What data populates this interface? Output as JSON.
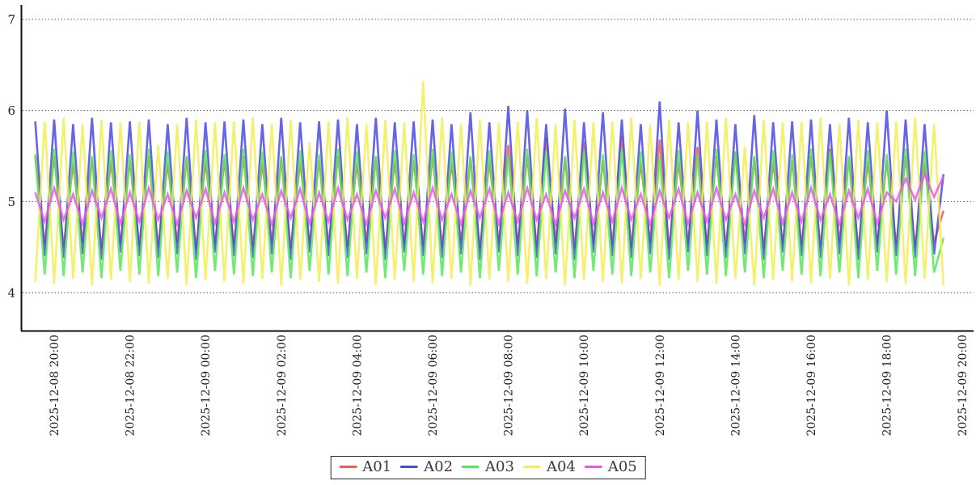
{
  "chart_data": {
    "type": "line",
    "title": "",
    "xlabel": "",
    "ylabel": "",
    "grid": "horizontal-dotted",
    "legend_position": "bottom-center",
    "x_start": "2025-12-08 19:30",
    "x_step_minutes": 15,
    "x_axis_ticks": [
      "2025-12-08 20:00",
      "2025-12-08 22:00",
      "2025-12-09 00:00",
      "2025-12-09 02:00",
      "2025-12-09 04:00",
      "2025-12-09 06:00",
      "2025-12-09 08:00",
      "2025-12-09 10:00",
      "2025-12-09 12:00",
      "2025-12-09 14:00",
      "2025-12-09 16:00",
      "2025-12-09 18:00",
      "2025-12-09 20:00"
    ],
    "y_axis": {
      "ticks": [
        4,
        5,
        6,
        7
      ],
      "range": [
        3.57,
        7.15
      ]
    },
    "series": [
      {
        "name": "A01",
        "color": "#f25b55",
        "values": [
          5.5,
          4.52,
          5.5,
          4.5,
          5.42,
          4.55,
          5.48,
          4.48,
          5.44,
          4.53,
          5.45,
          4.52,
          5.5,
          4.5,
          5.42,
          4.55,
          5.48,
          4.48,
          5.44,
          4.53,
          5.45,
          4.52,
          5.5,
          4.5,
          5.42,
          4.55,
          5.48,
          4.48,
          5.44,
          4.53,
          5.45,
          4.52,
          5.5,
          4.5,
          5.42,
          4.55,
          5.48,
          4.48,
          5.44,
          4.53,
          5.45,
          4.52,
          5.5,
          4.5,
          5.42,
          4.55,
          5.48,
          4.48,
          5.44,
          4.53,
          5.62,
          4.52,
          5.5,
          4.5,
          5.7,
          4.55,
          5.48,
          4.48,
          5.66,
          4.53,
          5.45,
          4.52,
          5.72,
          4.5,
          5.42,
          4.55,
          5.68,
          4.48,
          5.44,
          4.53,
          5.6,
          4.52,
          5.5,
          4.5,
          5.55,
          4.55,
          5.48,
          4.48,
          5.44,
          4.53,
          5.45,
          4.52,
          5.5,
          4.5,
          5.58,
          4.55,
          5.48,
          4.48,
          5.44,
          4.53,
          5.45,
          4.52,
          5.5,
          4.5,
          5.42,
          4.55,
          4.9
        ]
      },
      {
        "name": "A02",
        "color": "#4a4ae0",
        "values": [
          5.88,
          4.4,
          5.9,
          4.38,
          5.85,
          4.42,
          5.92,
          4.36,
          5.87,
          4.44,
          5.88,
          4.4,
          5.9,
          4.38,
          5.85,
          4.42,
          5.92,
          4.36,
          5.87,
          4.44,
          5.88,
          4.4,
          5.9,
          4.38,
          5.85,
          4.42,
          5.92,
          4.36,
          5.87,
          4.44,
          5.88,
          4.4,
          5.9,
          4.38,
          5.85,
          4.42,
          5.92,
          4.36,
          5.87,
          4.44,
          5.88,
          4.4,
          5.9,
          4.38,
          5.85,
          4.42,
          5.98,
          4.36,
          5.87,
          4.44,
          6.05,
          4.4,
          6.0,
          4.38,
          5.85,
          4.42,
          6.02,
          4.36,
          5.87,
          4.44,
          5.98,
          4.4,
          5.9,
          4.38,
          5.85,
          4.42,
          6.1,
          4.36,
          5.87,
          4.44,
          6.0,
          4.4,
          5.9,
          4.38,
          5.85,
          4.42,
          5.95,
          4.36,
          5.87,
          4.44,
          5.88,
          4.4,
          5.9,
          4.38,
          5.85,
          4.42,
          5.92,
          4.36,
          5.87,
          4.44,
          6.0,
          4.4,
          5.9,
          4.38,
          5.85,
          4.42,
          5.3
        ]
      },
      {
        "name": "A03",
        "color": "#57e657",
        "values": [
          5.52,
          4.2,
          5.58,
          4.18,
          5.55,
          4.22,
          5.5,
          4.16,
          5.56,
          4.24,
          5.52,
          4.2,
          5.58,
          4.18,
          5.55,
          4.22,
          5.5,
          4.16,
          5.56,
          4.24,
          5.52,
          4.2,
          5.58,
          4.18,
          5.55,
          4.22,
          5.5,
          4.16,
          5.56,
          4.24,
          5.52,
          4.2,
          5.58,
          4.18,
          5.55,
          4.22,
          5.5,
          4.16,
          5.56,
          4.24,
          5.52,
          4.2,
          5.58,
          4.18,
          5.55,
          4.22,
          5.5,
          4.16,
          5.56,
          4.24,
          5.52,
          4.2,
          5.58,
          4.18,
          5.55,
          4.22,
          5.5,
          4.16,
          5.56,
          4.24,
          5.52,
          4.2,
          5.58,
          4.18,
          5.55,
          4.22,
          5.5,
          4.16,
          5.56,
          4.24,
          5.52,
          4.2,
          5.58,
          4.18,
          5.55,
          4.22,
          5.5,
          4.16,
          5.56,
          4.24,
          5.52,
          4.2,
          5.58,
          4.18,
          5.55,
          4.22,
          5.5,
          4.16,
          5.56,
          4.24,
          5.52,
          4.2,
          5.58,
          4.18,
          5.55,
          4.22,
          4.6
        ]
      },
      {
        "name": "A04",
        "color": "#f2ee58",
        "values": [
          4.12,
          5.88,
          4.1,
          5.92,
          4.15,
          5.85,
          4.08,
          5.9,
          4.14,
          5.87,
          4.12,
          5.88,
          4.1,
          5.62,
          4.15,
          5.85,
          4.08,
          5.9,
          4.14,
          5.87,
          4.12,
          5.88,
          4.1,
          5.92,
          4.15,
          5.85,
          4.08,
          5.9,
          4.14,
          5.65,
          4.12,
          5.88,
          4.1,
          5.92,
          4.15,
          5.85,
          4.08,
          5.9,
          4.14,
          5.87,
          4.12,
          6.32,
          4.1,
          5.92,
          4.15,
          5.85,
          4.08,
          5.9,
          4.14,
          5.87,
          4.12,
          5.88,
          4.1,
          5.92,
          4.15,
          5.85,
          4.08,
          5.9,
          4.14,
          5.87,
          4.12,
          5.88,
          4.1,
          5.92,
          4.15,
          5.85,
          4.08,
          5.9,
          4.14,
          5.87,
          4.12,
          5.88,
          4.1,
          5.92,
          4.15,
          5.6,
          4.08,
          5.9,
          4.14,
          5.87,
          4.12,
          5.88,
          4.1,
          5.92,
          4.15,
          5.85,
          4.08,
          5.9,
          4.14,
          5.87,
          4.12,
          5.88,
          4.1,
          5.92,
          4.15,
          5.85,
          4.08
        ]
      },
      {
        "name": "A05",
        "color": "#ee55ee",
        "values": [
          5.1,
          4.78,
          5.15,
          4.8,
          5.08,
          4.75,
          5.12,
          4.82,
          5.14,
          4.76,
          5.1,
          4.78,
          5.15,
          4.8,
          5.08,
          4.75,
          5.12,
          4.82,
          5.14,
          4.76,
          5.1,
          4.78,
          5.15,
          4.8,
          5.08,
          4.75,
          5.12,
          4.82,
          5.14,
          4.76,
          5.1,
          4.78,
          5.15,
          4.8,
          5.08,
          4.75,
          5.12,
          4.82,
          5.14,
          4.76,
          5.1,
          4.78,
          5.15,
          4.8,
          5.08,
          4.75,
          5.12,
          4.82,
          5.14,
          4.76,
          5.1,
          4.78,
          5.15,
          4.8,
          5.08,
          4.75,
          5.12,
          4.82,
          5.14,
          4.76,
          5.1,
          4.78,
          5.15,
          4.8,
          5.08,
          4.75,
          5.12,
          4.82,
          5.14,
          4.76,
          5.1,
          4.78,
          5.15,
          4.8,
          5.08,
          4.75,
          5.12,
          4.82,
          5.14,
          4.76,
          5.1,
          4.78,
          5.15,
          4.8,
          5.08,
          4.75,
          5.12,
          4.82,
          5.14,
          4.76,
          5.1,
          5.0,
          5.25,
          5.02,
          5.3,
          5.05,
          5.28
        ]
      }
    ]
  }
}
